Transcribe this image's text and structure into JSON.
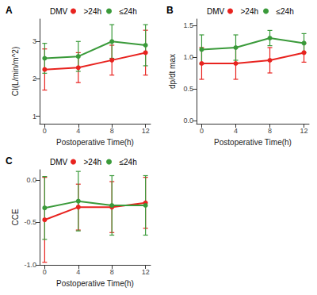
{
  "chart_data": [
    {
      "type": "line",
      "title": "A",
      "legend_title": "DMV",
      "legend": "top",
      "x_label": "Postoperative Time(h)",
      "y_label": "CI(L/min/m^2)",
      "x": [
        0,
        4,
        8,
        12
      ],
      "xlim": [
        -0.6,
        12.6
      ],
      "xticks": [
        0,
        4,
        8,
        12
      ],
      "ylim": [
        0.8,
        3.6
      ],
      "yticks": [
        1,
        2,
        3
      ],
      "grid": false,
      "series": [
        {
          "name": ">24h",
          "color": "#e8231f",
          "marker": "circle",
          "values": [
            2.25,
            2.3,
            2.5,
            2.7
          ],
          "error": [
            0.55,
            0.4,
            0.4,
            0.6
          ]
        },
        {
          "name": "≤24h",
          "color": "#3a9a3a",
          "marker": "circle",
          "values": [
            2.55,
            2.6,
            3.0,
            2.9
          ],
          "error": [
            0.4,
            0.4,
            0.45,
            0.55
          ]
        }
      ]
    },
    {
      "type": "line",
      "title": "B",
      "legend_title": "DMV",
      "legend": "top",
      "x_label": "Postoperative Time(h)",
      "y_label": "dp/dt max",
      "x": [
        0,
        4,
        8,
        12
      ],
      "xlim": [
        -0.6,
        12.6
      ],
      "xticks": [
        0,
        4,
        8,
        12
      ],
      "ylim": [
        -0.05,
        1.6
      ],
      "yticks": [
        {
          "value": 0,
          "label": "0.0"
        },
        {
          "value": 0.5,
          "label": "0.5"
        },
        {
          "value": 1,
          "label": "1.0"
        },
        {
          "value": 1.5,
          "label": "1.5"
        }
      ],
      "grid": false,
      "series": [
        {
          "name": ">24h",
          "color": "#e8231f",
          "marker": "circle",
          "values": [
            0.9,
            0.9,
            0.95,
            1.07
          ],
          "error": [
            0.25,
            0.25,
            0.2,
            0.15
          ]
        },
        {
          "name": "≤24h",
          "color": "#3a9a3a",
          "marker": "circle",
          "values": [
            1.12,
            1.15,
            1.3,
            1.22
          ],
          "error": [
            0.23,
            0.2,
            0.12,
            0.15
          ]
        }
      ]
    },
    {
      "type": "line",
      "title": "C",
      "legend_title": "DMV",
      "legend": "top",
      "x_label": "Postoperative Time(h)",
      "y_label": "CCE",
      "x": [
        0,
        4,
        8,
        12
      ],
      "xlim": [
        -0.6,
        12.6
      ],
      "xticks": [
        0,
        4,
        8,
        12
      ],
      "ylim": [
        -1.0,
        0.12
      ],
      "yticks": [
        {
          "value": -1,
          "label": "-1.0"
        },
        {
          "value": -0.5,
          "label": "-0.5"
        },
        {
          "value": 0,
          "label": "0.0"
        }
      ],
      "grid": false,
      "series": [
        {
          "name": ">24h",
          "color": "#e8231f",
          "marker": "circle",
          "values": [
            -0.47,
            -0.32,
            -0.32,
            -0.27
          ],
          "error": [
            0.5,
            0.27,
            0.3,
            0.3
          ]
        },
        {
          "name": "≤24h",
          "color": "#3a9a3a",
          "marker": "circle",
          "values": [
            -0.33,
            -0.25,
            -0.3,
            -0.3
          ],
          "error": [
            0.37,
            0.35,
            0.35,
            0.35
          ]
        }
      ]
    }
  ]
}
